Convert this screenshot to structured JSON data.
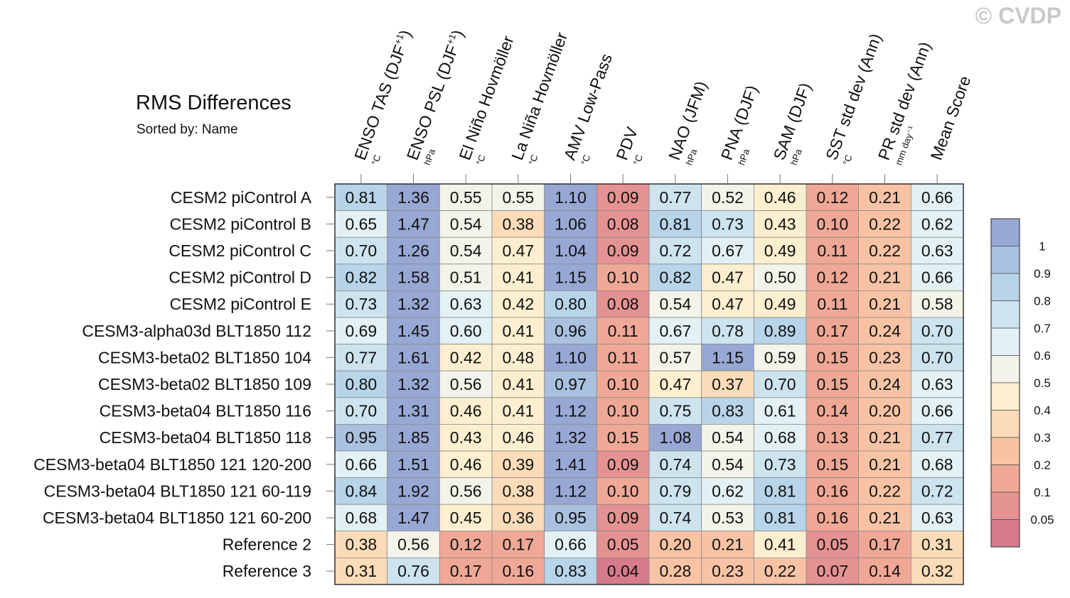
{
  "header": {
    "title": "RMS Differences",
    "subtitle": "Sorted by: Name",
    "watermark": "© CVDP"
  },
  "chart_data": {
    "type": "heatmap",
    "title": "RMS Differences",
    "subtitle": "Sorted by: Name",
    "columns": [
      {
        "label": "ENSO TAS (DJF",
        "sup": "+1",
        "close": ")",
        "unit": "°C"
      },
      {
        "label": "ENSO PSL (DJF",
        "sup": "+1",
        "close": ")",
        "unit": "hPa"
      },
      {
        "label": "El Niño Hovmöller",
        "sup": "",
        "close": "",
        "unit": "°C"
      },
      {
        "label": "La Niña Hovmöller",
        "sup": "",
        "close": "",
        "unit": "°C"
      },
      {
        "label": "AMV Low-Pass",
        "sup": "",
        "close": "",
        "unit": "°C"
      },
      {
        "label": "PDV",
        "sup": "",
        "close": "",
        "unit": "°C"
      },
      {
        "label": "NAO (JFM)",
        "sup": "",
        "close": "",
        "unit": "hPa"
      },
      {
        "label": "PNA (DJF)",
        "sup": "",
        "close": "",
        "unit": "hPa"
      },
      {
        "label": "SAM (DJF)",
        "sup": "",
        "close": "",
        "unit": "hPa"
      },
      {
        "label": "SST std dev (Ann)",
        "sup": "",
        "close": "",
        "unit": "°C"
      },
      {
        "label": "PR std dev (Ann)",
        "sup": "",
        "close": "",
        "unit": "mm day⁻¹"
      },
      {
        "label": "Mean Score",
        "sup": "",
        "close": "",
        "unit": ""
      }
    ],
    "rows": [
      "CESM2 piControl A",
      "CESM2 piControl B",
      "CESM2 piControl C",
      "CESM2 piControl D",
      "CESM2 piControl E",
      "CESM3-alpha03d BLT1850 112",
      "CESM3-beta02 BLT1850 104",
      "CESM3-beta02 BLT1850 109",
      "CESM3-beta04 BLT1850 116",
      "CESM3-beta04 BLT1850 118",
      "CESM3-beta04 BLT1850 121 120-200",
      "CESM3-beta04 BLT1850 121 60-119",
      "CESM3-beta04 BLT1850 121 60-200",
      "Reference 2",
      "Reference 3"
    ],
    "values": [
      [
        "0.81",
        "1.36",
        "0.55",
        "0.55",
        "1.10",
        "0.09",
        "0.77",
        "0.52",
        "0.46",
        "0.12",
        "0.21",
        "0.66"
      ],
      [
        "0.65",
        "1.47",
        "0.54",
        "0.38",
        "1.06",
        "0.08",
        "0.81",
        "0.73",
        "0.43",
        "0.10",
        "0.22",
        "0.62"
      ],
      [
        "0.70",
        "1.26",
        "0.54",
        "0.47",
        "1.04",
        "0.09",
        "0.72",
        "0.67",
        "0.49",
        "0.11",
        "0.22",
        "0.63"
      ],
      [
        "0.82",
        "1.58",
        "0.51",
        "0.41",
        "1.15",
        "0.10",
        "0.82",
        "0.47",
        "0.50",
        "0.12",
        "0.21",
        "0.66"
      ],
      [
        "0.73",
        "1.32",
        "0.63",
        "0.42",
        "0.80",
        "0.08",
        "0.54",
        "0.47",
        "0.49",
        "0.11",
        "0.21",
        "0.58"
      ],
      [
        "0.69",
        "1.45",
        "0.60",
        "0.41",
        "0.96",
        "0.11",
        "0.67",
        "0.78",
        "0.89",
        "0.17",
        "0.24",
        "0.70"
      ],
      [
        "0.77",
        "1.61",
        "0.42",
        "0.48",
        "1.10",
        "0.11",
        "0.57",
        "1.15",
        "0.59",
        "0.15",
        "0.23",
        "0.70"
      ],
      [
        "0.80",
        "1.32",
        "0.56",
        "0.41",
        "0.97",
        "0.10",
        "0.47",
        "0.37",
        "0.70",
        "0.15",
        "0.24",
        "0.63"
      ],
      [
        "0.70",
        "1.31",
        "0.46",
        "0.41",
        "1.12",
        "0.10",
        "0.75",
        "0.83",
        "0.61",
        "0.14",
        "0.20",
        "0.66"
      ],
      [
        "0.95",
        "1.85",
        "0.43",
        "0.46",
        "1.32",
        "0.15",
        "1.08",
        "0.54",
        "0.68",
        "0.13",
        "0.21",
        "0.77"
      ],
      [
        "0.66",
        "1.51",
        "0.46",
        "0.39",
        "1.41",
        "0.09",
        "0.74",
        "0.54",
        "0.73",
        "0.15",
        "0.21",
        "0.68"
      ],
      [
        "0.84",
        "1.92",
        "0.56",
        "0.38",
        "1.12",
        "0.10",
        "0.79",
        "0.62",
        "0.81",
        "0.16",
        "0.22",
        "0.72"
      ],
      [
        "0.68",
        "1.47",
        "0.45",
        "0.36",
        "0.95",
        "0.09",
        "0.74",
        "0.53",
        "0.81",
        "0.16",
        "0.21",
        "0.63"
      ],
      [
        "0.38",
        "0.56",
        "0.12",
        "0.17",
        "0.66",
        "0.05",
        "0.20",
        "0.21",
        "0.41",
        "0.05",
        "0.17",
        "0.31"
      ],
      [
        "0.31",
        "0.76",
        "0.17",
        "0.16",
        "0.83",
        "0.04",
        "0.28",
        "0.23",
        "0.22",
        "0.07",
        "0.14",
        "0.32"
      ]
    ],
    "colorbar": {
      "levels": [
        0.05,
        0.1,
        0.2,
        0.3,
        0.4,
        0.5,
        0.6,
        0.7,
        0.8,
        0.9,
        1
      ],
      "labels": [
        "0.05",
        "0.1",
        "0.2",
        "0.3",
        "0.4",
        "0.5",
        "0.6",
        "0.7",
        "0.8",
        "0.9",
        "1"
      ],
      "colors": [
        "#d67b8c",
        "#e59292",
        "#f0a896",
        "#f7c3a4",
        "#fadcb8",
        "#fcefcf",
        "#f3f3ea",
        "#e3f0f4",
        "#cde4ef",
        "#b7d4e8",
        "#a9c1df",
        "#98a8d4"
      ]
    }
  }
}
